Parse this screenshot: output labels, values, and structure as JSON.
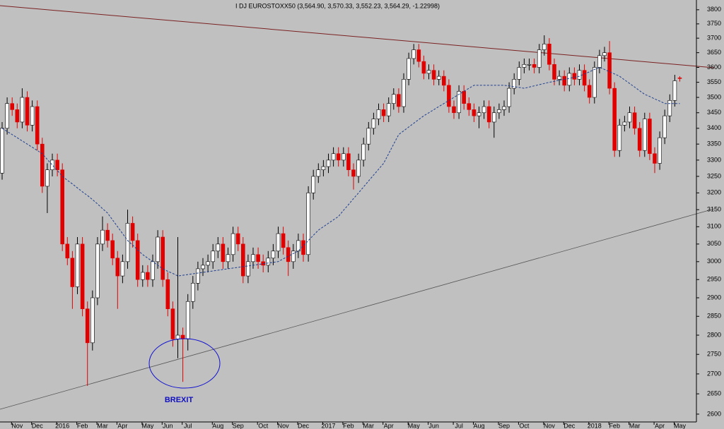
{
  "chart_data": {
    "type": "candlestick",
    "title": "I DJ EUROSTOXX50 (3,564.90, 3,570.33, 3,552.23, 3,564.29, -1.22998)",
    "annotations": [
      "BREXIT"
    ],
    "log_scale": true,
    "grid": false,
    "up_color": "#ffffff",
    "down_color": "#e00000",
    "categories": [
      null,
      null,
      null,
      "Nov",
      null,
      null,
      null,
      "Dec",
      null,
      null,
      null,
      null,
      "2016",
      null,
      null,
      null,
      "Feb",
      null,
      null,
      null,
      "Mar",
      null,
      null,
      null,
      "Apr",
      null,
      null,
      null,
      null,
      "May",
      null,
      null,
      null,
      "Jun",
      null,
      null,
      null,
      "Jul",
      null,
      null,
      null,
      null,
      null,
      "Aug",
      null,
      null,
      null,
      "Sep",
      null,
      null,
      null,
      null,
      "Oct",
      null,
      null,
      null,
      "Nov",
      null,
      null,
      null,
      "Dec",
      null,
      null,
      null,
      null,
      "2017",
      null,
      null,
      null,
      "Feb",
      null,
      null,
      null,
      "Mar",
      null,
      null,
      null,
      "Apr",
      null,
      null,
      null,
      null,
      "May",
      null,
      null,
      null,
      "Jun",
      null,
      null,
      null,
      null,
      "Jul",
      null,
      null,
      null,
      "Aug",
      null,
      null,
      null,
      null,
      "Sep",
      null,
      null,
      null,
      "Oct",
      null,
      null,
      null,
      null,
      "Nov",
      null,
      null,
      null,
      "Dec",
      null,
      null,
      null,
      null,
      "2018",
      null,
      null,
      null,
      "Feb",
      null,
      null,
      null,
      "Mar",
      null,
      null,
      null,
      null,
      "Apr",
      null,
      null,
      null,
      "May"
    ],
    "open": [
      3260,
      3400,
      3480,
      3460,
      3420,
      3500,
      3410,
      3470,
      3350,
      3220,
      3270,
      3300,
      3270,
      3050,
      3010,
      2930,
      3050,
      2870,
      2780,
      2900,
      3050,
      3090,
      3060,
      3010,
      2960,
      3000,
      3110,
      3060,
      2950,
      2970,
      2950,
      3000,
      3070,
      2950,
      2870,
      2790,
      2800,
      2790,
      2890,
      2940,
      2980,
      2990,
      3000,
      3030,
      3050,
      3000,
      3020,
      3080,
      3050,
      2960,
      3000,
      3020,
      3000,
      2990,
      3010,
      3030,
      3080,
      3040,
      3000,
      3030,
      3060,
      3020,
      3200,
      3250,
      3270,
      3280,
      3300,
      3320,
      3300,
      3320,
      3270,
      3250,
      3300,
      3350,
      3400,
      3430,
      3460,
      3440,
      3480,
      3510,
      3470,
      3560,
      3630,
      3660,
      3620,
      3580,
      3590,
      3560,
      3570,
      3540,
      3470,
      3450,
      3520,
      3480,
      3460,
      3440,
      3450,
      3470,
      3420,
      3450,
      3460,
      3470,
      3530,
      3560,
      3600,
      3610,
      3610,
      3600,
      3660,
      3680,
      3610,
      3560,
      3570,
      3540,
      3580,
      3560,
      3590,
      3540,
      3500,
      3600,
      3640,
      3650,
      3530,
      3330,
      3410,
      3420,
      3450,
      3400,
      3330,
      3430,
      3320,
      3290,
      3370,
      3440,
      3490,
      3564.9
    ],
    "high": [
      3420,
      3500,
      3500,
      3480,
      3530,
      3520,
      3490,
      3490,
      3370,
      3290,
      3320,
      3320,
      3290,
      3070,
      3030,
      3070,
      3070,
      2890,
      2920,
      3070,
      3130,
      3110,
      3080,
      3030,
      3020,
      3150,
      3130,
      3080,
      2990,
      2990,
      3020,
      3090,
      3090,
      2970,
      2890,
      3070,
      2820,
      2910,
      2960,
      3000,
      3010,
      3020,
      3050,
      3070,
      3070,
      3040,
      3100,
      3100,
      3070,
      3020,
      3040,
      3040,
      3020,
      3030,
      3050,
      3100,
      3100,
      3060,
      3050,
      3080,
      3080,
      3220,
      3270,
      3290,
      3300,
      3320,
      3340,
      3340,
      3340,
      3340,
      3290,
      3320,
      3370,
      3420,
      3450,
      3480,
      3480,
      3500,
      3530,
      3530,
      3580,
      3650,
      3680,
      3680,
      3640,
      3610,
      3610,
      3590,
      3590,
      3560,
      3490,
      3540,
      3540,
      3500,
      3480,
      3470,
      3490,
      3490,
      3470,
      3480,
      3490,
      3550,
      3580,
      3620,
      3630,
      3630,
      3630,
      3680,
      3710,
      3700,
      3630,
      3590,
      3590,
      3600,
      3600,
      3610,
      3610,
      3560,
      3620,
      3660,
      3670,
      3690,
      3550,
      3430,
      3440,
      3470,
      3470,
      3420,
      3450,
      3450,
      3340,
      3390,
      3460,
      3510,
      3575,
      3570.33
    ],
    "low": [
      3240,
      3380,
      3440,
      3400,
      3400,
      3390,
      3390,
      3330,
      3200,
      3140,
      3250,
      3250,
      3030,
      2990,
      2870,
      2910,
      2850,
      2670,
      2760,
      2880,
      3030,
      3040,
      2990,
      2870,
      2940,
      2980,
      3040,
      2930,
      2930,
      2930,
      2930,
      2980,
      2930,
      2850,
      2770,
      2740,
      2680,
      2760,
      2870,
      2920,
      2960,
      2970,
      2980,
      3010,
      2980,
      2980,
      3000,
      3030,
      2940,
      2940,
      2980,
      2980,
      2970,
      2970,
      2990,
      3010,
      3020,
      2960,
      2980,
      3010,
      3000,
      3000,
      3180,
      3230,
      3250,
      3260,
      3280,
      3280,
      3280,
      3250,
      3210,
      3230,
      3280,
      3330,
      3380,
      3410,
      3420,
      3420,
      3460,
      3450,
      3450,
      3540,
      3610,
      3600,
      3560,
      3560,
      3540,
      3540,
      3520,
      3450,
      3430,
      3430,
      3460,
      3440,
      3420,
      3400,
      3430,
      3400,
      3370,
      3430,
      3440,
      3450,
      3510,
      3540,
      3580,
      3590,
      3580,
      3580,
      3640,
      3590,
      3540,
      3540,
      3520,
      3520,
      3540,
      3540,
      3520,
      3480,
      3480,
      3580,
      3620,
      3510,
      3310,
      3310,
      3390,
      3400,
      3380,
      3310,
      3310,
      3300,
      3260,
      3270,
      3350,
      3420,
      3470,
      3552.23
    ],
    "close": [
      3400,
      3480,
      3460,
      3420,
      3500,
      3410,
      3470,
      3350,
      3220,
      3270,
      3300,
      3270,
      3050,
      3010,
      2930,
      3050,
      2870,
      2780,
      2900,
      3050,
      3090,
      3060,
      3010,
      2960,
      3000,
      3110,
      3060,
      2950,
      2970,
      2950,
      3000,
      3070,
      2950,
      2870,
      2790,
      2800,
      2790,
      2890,
      2940,
      2980,
      2990,
      3000,
      3030,
      3050,
      3000,
      3020,
      3080,
      3050,
      2960,
      3000,
      3020,
      3000,
      2990,
      3010,
      3030,
      3080,
      3040,
      3000,
      3030,
      3060,
      3020,
      3200,
      3250,
      3270,
      3280,
      3300,
      3320,
      3300,
      3320,
      3270,
      3250,
      3300,
      3350,
      3400,
      3430,
      3460,
      3440,
      3480,
      3510,
      3470,
      3560,
      3630,
      3660,
      3620,
      3580,
      3590,
      3560,
      3570,
      3540,
      3470,
      3450,
      3520,
      3480,
      3460,
      3440,
      3450,
      3470,
      3420,
      3450,
      3460,
      3470,
      3530,
      3560,
      3600,
      3610,
      3610,
      3600,
      3660,
      3680,
      3610,
      3560,
      3570,
      3540,
      3580,
      3560,
      3590,
      3540,
      3500,
      3600,
      3640,
      3650,
      3530,
      3330,
      3410,
      3420,
      3450,
      3400,
      3330,
      3430,
      3320,
      3290,
      3370,
      3440,
      3490,
      3555,
      3564.29
    ],
    "ma": {
      "color": "#1f3f8f",
      "values": [
        3400,
        3390,
        3380,
        3370,
        3360,
        3350,
        3340,
        3330,
        3320,
        3302,
        3285,
        3268,
        3250,
        3238,
        3227,
        3215,
        3203,
        3192,
        3180,
        3167,
        3153,
        3140,
        3120,
        3100,
        3080,
        3060,
        3047,
        3033,
        3020,
        3010,
        3000,
        2990,
        2980,
        2973,
        2967,
        2960,
        2962,
        2964,
        2966,
        2968,
        2970,
        2972,
        2974,
        2976,
        2978,
        2980,
        2982,
        2984,
        2986,
        2988,
        2990,
        2992,
        2994,
        2996,
        2998,
        3000,
        3008,
        3015,
        3023,
        3030,
        3045,
        3060,
        3075,
        3090,
        3100,
        3110,
        3120,
        3130,
        3148,
        3165,
        3183,
        3200,
        3218,
        3236,
        3254,
        3272,
        3290,
        3320,
        3350,
        3380,
        3392,
        3404,
        3416,
        3428,
        3440,
        3450,
        3460,
        3470,
        3480,
        3490,
        3500,
        3510,
        3520,
        3530,
        3540,
        3540,
        3540,
        3540,
        3540,
        3540,
        3540,
        3538,
        3535,
        3533,
        3530,
        3534,
        3538,
        3542,
        3546,
        3550,
        3553,
        3557,
        3560,
        3563,
        3567,
        3570,
        3578,
        3585,
        3593,
        3600,
        3593,
        3585,
        3578,
        3570,
        3558,
        3546,
        3534,
        3522,
        3510,
        3503,
        3495,
        3488,
        3480,
        3480,
        3480,
        3480
      ]
    },
    "ylim": [
      2581,
      3835
    ],
    "yticks": [
      2600,
      2650,
      2700,
      2750,
      2800,
      2850,
      2900,
      2950,
      3000,
      3050,
      3100,
      3150,
      3200,
      3250,
      3300,
      3350,
      3400,
      3450,
      3500,
      3550,
      3600,
      3650,
      3700,
      3750,
      3800
    ]
  }
}
